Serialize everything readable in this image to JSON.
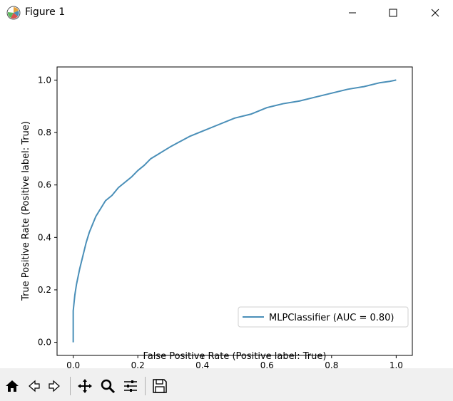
{
  "window": {
    "title": "Figure 1",
    "app_icon": "matplotlib-logo-icon",
    "controls": [
      "minimize-icon",
      "maximize-icon",
      "close-icon"
    ]
  },
  "toolbar": {
    "buttons": [
      "home-icon",
      "back-icon",
      "forward-icon",
      "pan-icon",
      "zoom-icon",
      "configure-subplots-icon",
      "save-icon"
    ]
  },
  "colors": {
    "curve": "#4a8fb8",
    "axes": "#000000",
    "legend_border": "#d0d0d0",
    "toolbar_bg": "#f0f0f0"
  },
  "chart_data": {
    "type": "line",
    "title": "",
    "xlabel": "False Positive Rate (Positive label: True)",
    "ylabel": "True Positive Rate (Positive label: True)",
    "xlim": [
      -0.05,
      1.05
    ],
    "ylim": [
      -0.05,
      1.05
    ],
    "xticks": [
      "0.0",
      "0.2",
      "0.4",
      "0.6",
      "0.8",
      "1.0"
    ],
    "yticks": [
      "0.0",
      "0.2",
      "0.4",
      "0.6",
      "0.8",
      "1.0"
    ],
    "grid": false,
    "legend_position": "lower-right",
    "series": [
      {
        "name": "MLPClassifier (AUC = 0.80)",
        "x": [
          0.0,
          0.0,
          0.005,
          0.01,
          0.02,
          0.03,
          0.04,
          0.05,
          0.06,
          0.07,
          0.08,
          0.09,
          0.1,
          0.12,
          0.14,
          0.16,
          0.18,
          0.2,
          0.22,
          0.24,
          0.26,
          0.28,
          0.3,
          0.33,
          0.36,
          0.4,
          0.45,
          0.5,
          0.55,
          0.6,
          0.65,
          0.7,
          0.75,
          0.8,
          0.85,
          0.9,
          0.95,
          0.98,
          1.0
        ],
        "y": [
          0.0,
          0.12,
          0.18,
          0.22,
          0.28,
          0.33,
          0.38,
          0.42,
          0.45,
          0.48,
          0.5,
          0.52,
          0.54,
          0.56,
          0.59,
          0.61,
          0.63,
          0.655,
          0.675,
          0.7,
          0.715,
          0.73,
          0.745,
          0.765,
          0.785,
          0.805,
          0.83,
          0.855,
          0.87,
          0.895,
          0.91,
          0.92,
          0.935,
          0.95,
          0.965,
          0.975,
          0.99,
          0.995,
          1.0
        ]
      }
    ]
  }
}
